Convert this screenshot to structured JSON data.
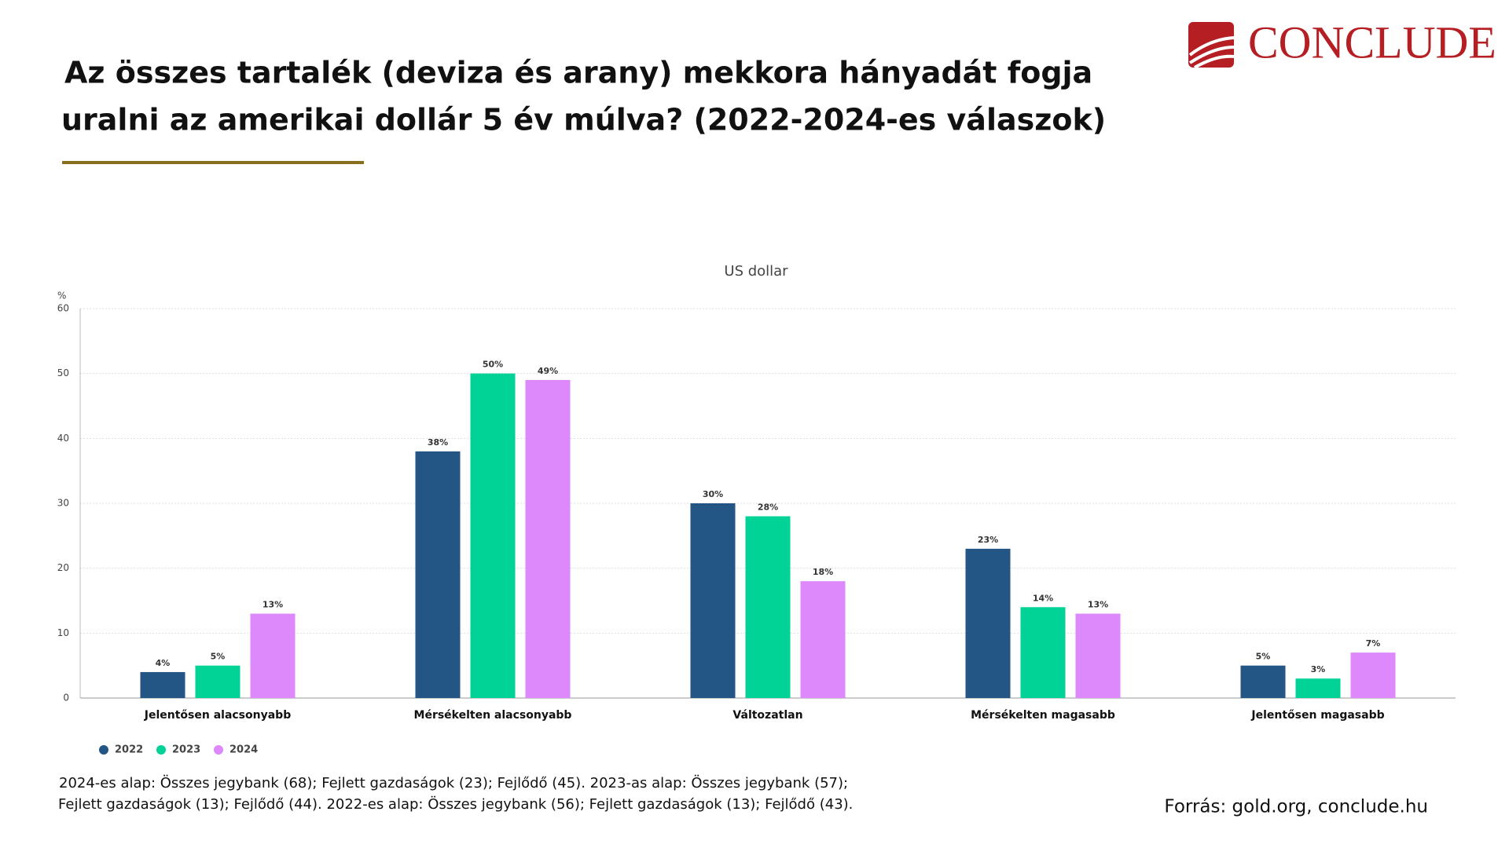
{
  "header": {
    "title": [
      "Az összes tartalék (deviza és arany) mekkora hányadát fogja",
      "uralni az amerikai dollár 5 év múlva? (2022-2024-es válaszok)"
    ],
    "logo": "CONCLUDE"
  },
  "chart_data": {
    "type": "bar",
    "title": "US dollar",
    "y_label": "%",
    "categories": [
      "Jelentősen alacsonyabb",
      "Mérsékelten alacsonyabb",
      "Változatlan",
      "Mérsékelten magasabb",
      "Jelentősen magasabb"
    ],
    "series": [
      {
        "name": "2022",
        "color": "#235685",
        "values": [
          4,
          38,
          30,
          23,
          5
        ],
        "value_labels": [
          "4%",
          "38%",
          "30%",
          "23%",
          "5%"
        ]
      },
      {
        "name": "2023",
        "color": "#00d395",
        "values": [
          5,
          50,
          28,
          14,
          3
        ],
        "value_labels": [
          "5%",
          "50%",
          "28%",
          "14%",
          "3%"
        ]
      },
      {
        "name": "2024",
        "color": "#dd88fb",
        "values": [
          13,
          49,
          18,
          13,
          7
        ],
        "value_labels": [
          "13%",
          "49%",
          "18%",
          "13%",
          "7%"
        ]
      }
    ],
    "ylim": [
      0,
      60
    ],
    "yticks": [
      0,
      10,
      20,
      30,
      40,
      50,
      60
    ],
    "grid": true,
    "legend": "bottom-left"
  },
  "footnote": [
    "2024-es alap: Összes jegybank (68); Fejlett gazdaságok (23); Fejlődő (45).  2023-as alap: Összes jegybank (57);",
    "Fejlett gazdaságok (13); Fejlődő (44).  2022-es alap: Összes jegybank (56); Fejlett gazdaságok (13); Fejlődő (43)."
  ],
  "source": "Forrás: gold.org, conclude.hu"
}
